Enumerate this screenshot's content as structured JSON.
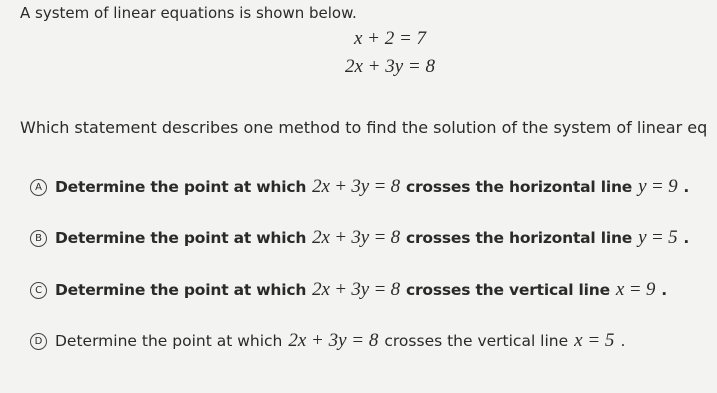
{
  "intro": "A system of linear equations is shown below.",
  "equations": [
    "x + 2 = 7",
    "2x + 3y = 8"
  ],
  "question": "Which statement describes one method to find the solution of the system of linear eq",
  "options": [
    {
      "letter": "A",
      "text": "Determine the point at which",
      "equation": "2x + 3y = 8",
      "relation": "crosses the horizontal line",
      "line": "y = 9",
      "end": "."
    },
    {
      "letter": "B",
      "text": "Determine the point at which",
      "equation": "2x + 3y = 8",
      "relation": "crosses the horizontal line",
      "line": "y = 5",
      "end": "."
    },
    {
      "letter": "C",
      "text": "Determine the point at which",
      "equation": "2x + 3y = 8",
      "relation": "crosses the vertical line",
      "line": "x = 9",
      "end": "."
    },
    {
      "letter": "D",
      "text": "Determine the point at which",
      "equation": "2x + 3y = 8",
      "relation": "crosses the vertical line",
      "line": "x = 5",
      "end": "."
    }
  ]
}
